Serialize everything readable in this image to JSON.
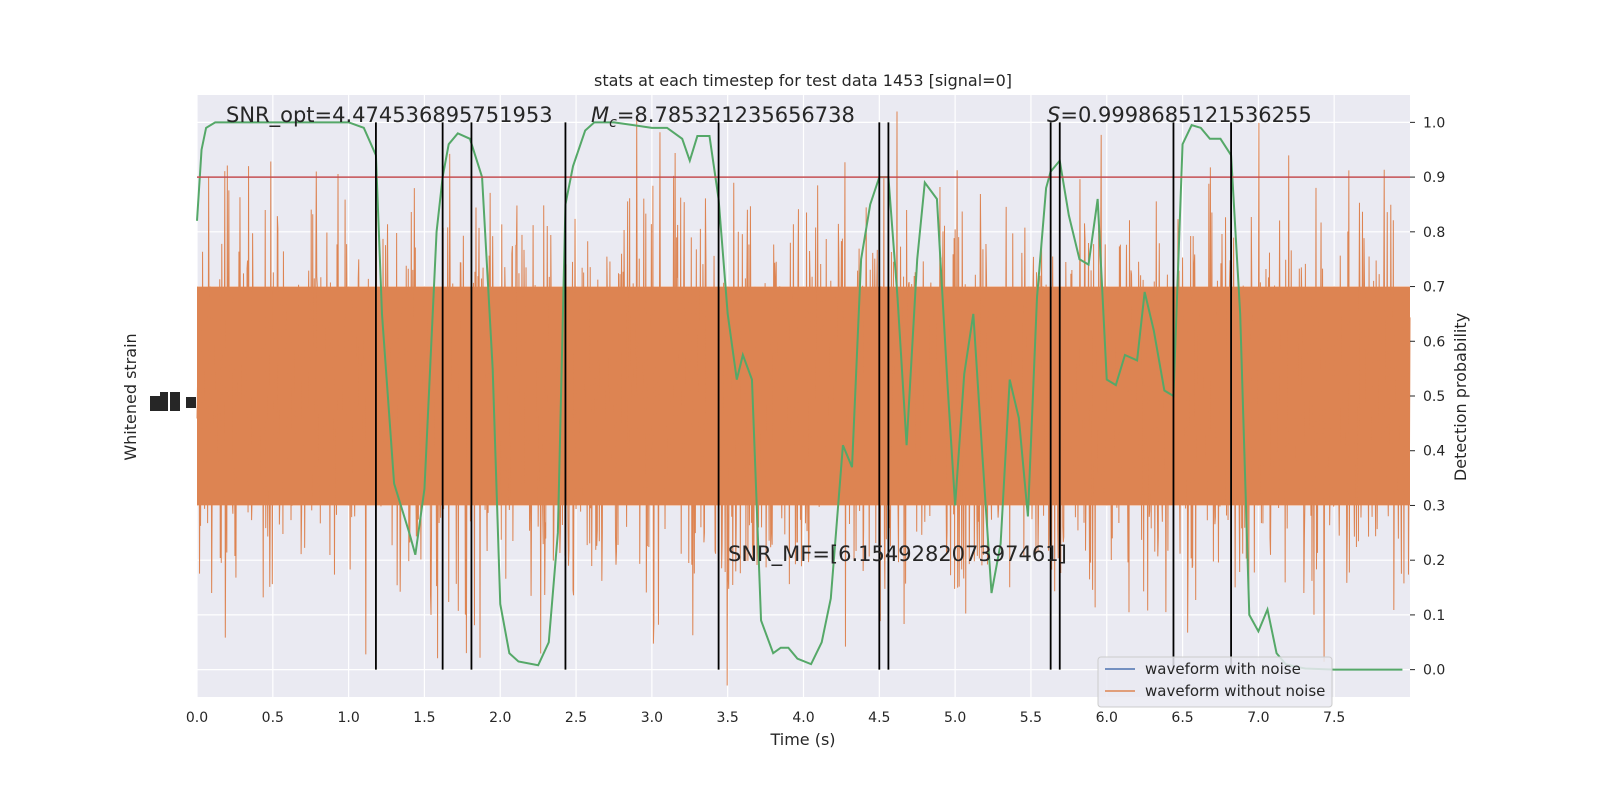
{
  "chart_data": {
    "type": "line",
    "title": "stats at each timestep for test data 1453 [signal=0]",
    "xlabel": "Time (s)",
    "ylabel_left": "Whitened strain",
    "ylabel_right": "Detection probability",
    "xlim": [
      0.0,
      8.0
    ],
    "ylim_right": [
      -0.05,
      1.05
    ],
    "x_ticks": [
      "0.0",
      "0.5",
      "1.0",
      "1.5",
      "2.0",
      "2.5",
      "3.0",
      "3.5",
      "4.0",
      "4.5",
      "5.0",
      "5.5",
      "6.0",
      "6.5",
      "7.0",
      "7.5"
    ],
    "y_ticks_right": [
      "0.0",
      "0.1",
      "0.2",
      "0.3",
      "0.4",
      "0.5",
      "0.6",
      "0.7",
      "0.8",
      "0.9",
      "1.0"
    ],
    "threshold": 0.9,
    "annotations": {
      "snr_opt": "SNR_opt=4.474536895751953",
      "mc": "=8.785321235656738",
      "s": "=0.9998685121536255",
      "snr_mf": "SNR_MF=[6.154928207397461]"
    },
    "legend": [
      "waveform with noise",
      "waveform without noise"
    ],
    "legend_position": "lower-right",
    "vertical_lines": [
      1.18,
      1.62,
      1.81,
      2.43,
      3.44,
      4.5,
      4.56,
      5.63,
      5.69,
      6.44,
      6.82
    ],
    "detection_probability": {
      "x": [
        0.0,
        0.03,
        0.06,
        0.12,
        0.25,
        0.5,
        0.75,
        1.0,
        1.1,
        1.18,
        1.22,
        1.3,
        1.4,
        1.44,
        1.5,
        1.58,
        1.62,
        1.66,
        1.72,
        1.8,
        1.88,
        1.95,
        2.0,
        2.06,
        2.12,
        2.25,
        2.32,
        2.38,
        2.43,
        2.48,
        2.56,
        2.62,
        2.75,
        3.0,
        3.1,
        3.2,
        3.25,
        3.3,
        3.38,
        3.44,
        3.5,
        3.56,
        3.6,
        3.66,
        3.72,
        3.8,
        3.85,
        3.9,
        3.96,
        4.05,
        4.12,
        4.18,
        4.26,
        4.32,
        4.38,
        4.44,
        4.5,
        4.56,
        4.62,
        4.68,
        4.75,
        4.8,
        4.88,
        4.95,
        5.0,
        5.06,
        5.12,
        5.18,
        5.24,
        5.3,
        5.36,
        5.42,
        5.48,
        5.54,
        5.6,
        5.63,
        5.69,
        5.75,
        5.82,
        5.88,
        5.94,
        6.0,
        6.06,
        6.12,
        6.2,
        6.25,
        6.31,
        6.38,
        6.44,
        6.5,
        6.56,
        6.62,
        6.68,
        6.75,
        6.82,
        6.88,
        6.94,
        7.0,
        7.06,
        7.12,
        7.18,
        7.25,
        7.31,
        7.5,
        7.75,
        7.95
      ],
      "y": [
        0.82,
        0.95,
        0.99,
        1.0,
        1.0,
        1.0,
        1.0,
        1.0,
        0.99,
        0.94,
        0.65,
        0.34,
        0.25,
        0.21,
        0.33,
        0.8,
        0.9,
        0.96,
        0.98,
        0.97,
        0.9,
        0.55,
        0.12,
        0.03,
        0.015,
        0.008,
        0.05,
        0.25,
        0.85,
        0.92,
        0.985,
        1.0,
        1.0,
        0.99,
        0.99,
        0.97,
        0.93,
        0.975,
        0.975,
        0.86,
        0.65,
        0.53,
        0.575,
        0.53,
        0.09,
        0.03,
        0.04,
        0.04,
        0.02,
        0.01,
        0.05,
        0.13,
        0.41,
        0.37,
        0.75,
        0.85,
        0.9,
        0.9,
        0.68,
        0.41,
        0.75,
        0.89,
        0.86,
        0.52,
        0.3,
        0.54,
        0.65,
        0.39,
        0.14,
        0.23,
        0.53,
        0.46,
        0.28,
        0.68,
        0.88,
        0.91,
        0.93,
        0.83,
        0.75,
        0.74,
        0.86,
        0.53,
        0.52,
        0.575,
        0.565,
        0.69,
        0.62,
        0.51,
        0.5,
        0.96,
        0.995,
        0.99,
        0.97,
        0.97,
        0.94,
        0.65,
        0.1,
        0.07,
        0.11,
        0.03,
        0.01,
        0.005,
        0.002,
        0.0,
        0.0,
        0.0
      ],
      "color": "#55a868"
    },
    "colors": {
      "background": "#eaeaf2",
      "grid": "#ffffff",
      "noise": "#dd8452",
      "clean": "#4c72b0",
      "threshold": "#c44e52",
      "vlines": "#000000"
    }
  }
}
